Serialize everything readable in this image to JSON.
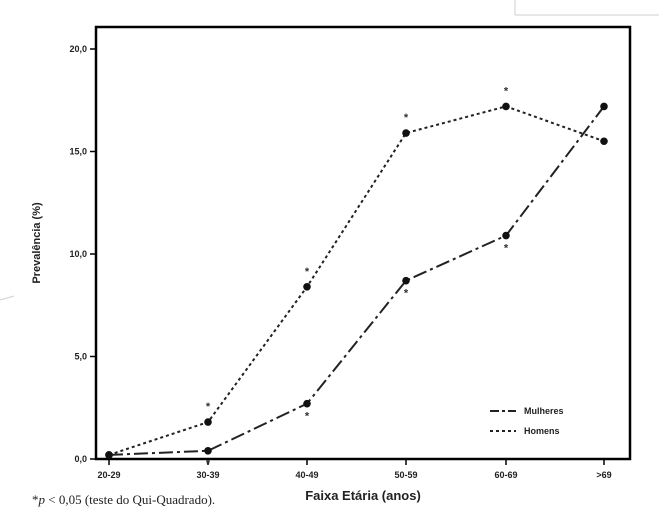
{
  "chart_data": {
    "type": "line",
    "title": "",
    "xlabel": "Faixa Etária (anos)",
    "ylabel": "Prevalência (%)",
    "categories": [
      "20-29",
      "30-39",
      "40-49",
      "50-59",
      "60-69",
      ">69"
    ],
    "ylim": [
      0,
      20
    ],
    "yticks": [
      "0,0",
      "5,0",
      "10,0",
      "15,0",
      "20,0"
    ],
    "grid": false,
    "legend_position": "bottom-right",
    "series": [
      {
        "name": "Mulheres",
        "style": "dash-dot",
        "values": [
          0.2,
          0.4,
          2.7,
          8.7,
          10.9,
          17.2
        ],
        "significant": [
          false,
          true,
          true,
          true,
          true,
          false
        ]
      },
      {
        "name": "Homens",
        "style": "dotted",
        "values": [
          0.2,
          1.8,
          8.4,
          15.9,
          17.2,
          15.5
        ],
        "significant": [
          false,
          true,
          true,
          true,
          true,
          false
        ]
      }
    ],
    "marker_color": "#111111",
    "significance_marker": "*"
  },
  "footnote": {
    "star": "*",
    "p": "p",
    "rest": " < 0,05 (teste do Qui-Quadrado)."
  }
}
